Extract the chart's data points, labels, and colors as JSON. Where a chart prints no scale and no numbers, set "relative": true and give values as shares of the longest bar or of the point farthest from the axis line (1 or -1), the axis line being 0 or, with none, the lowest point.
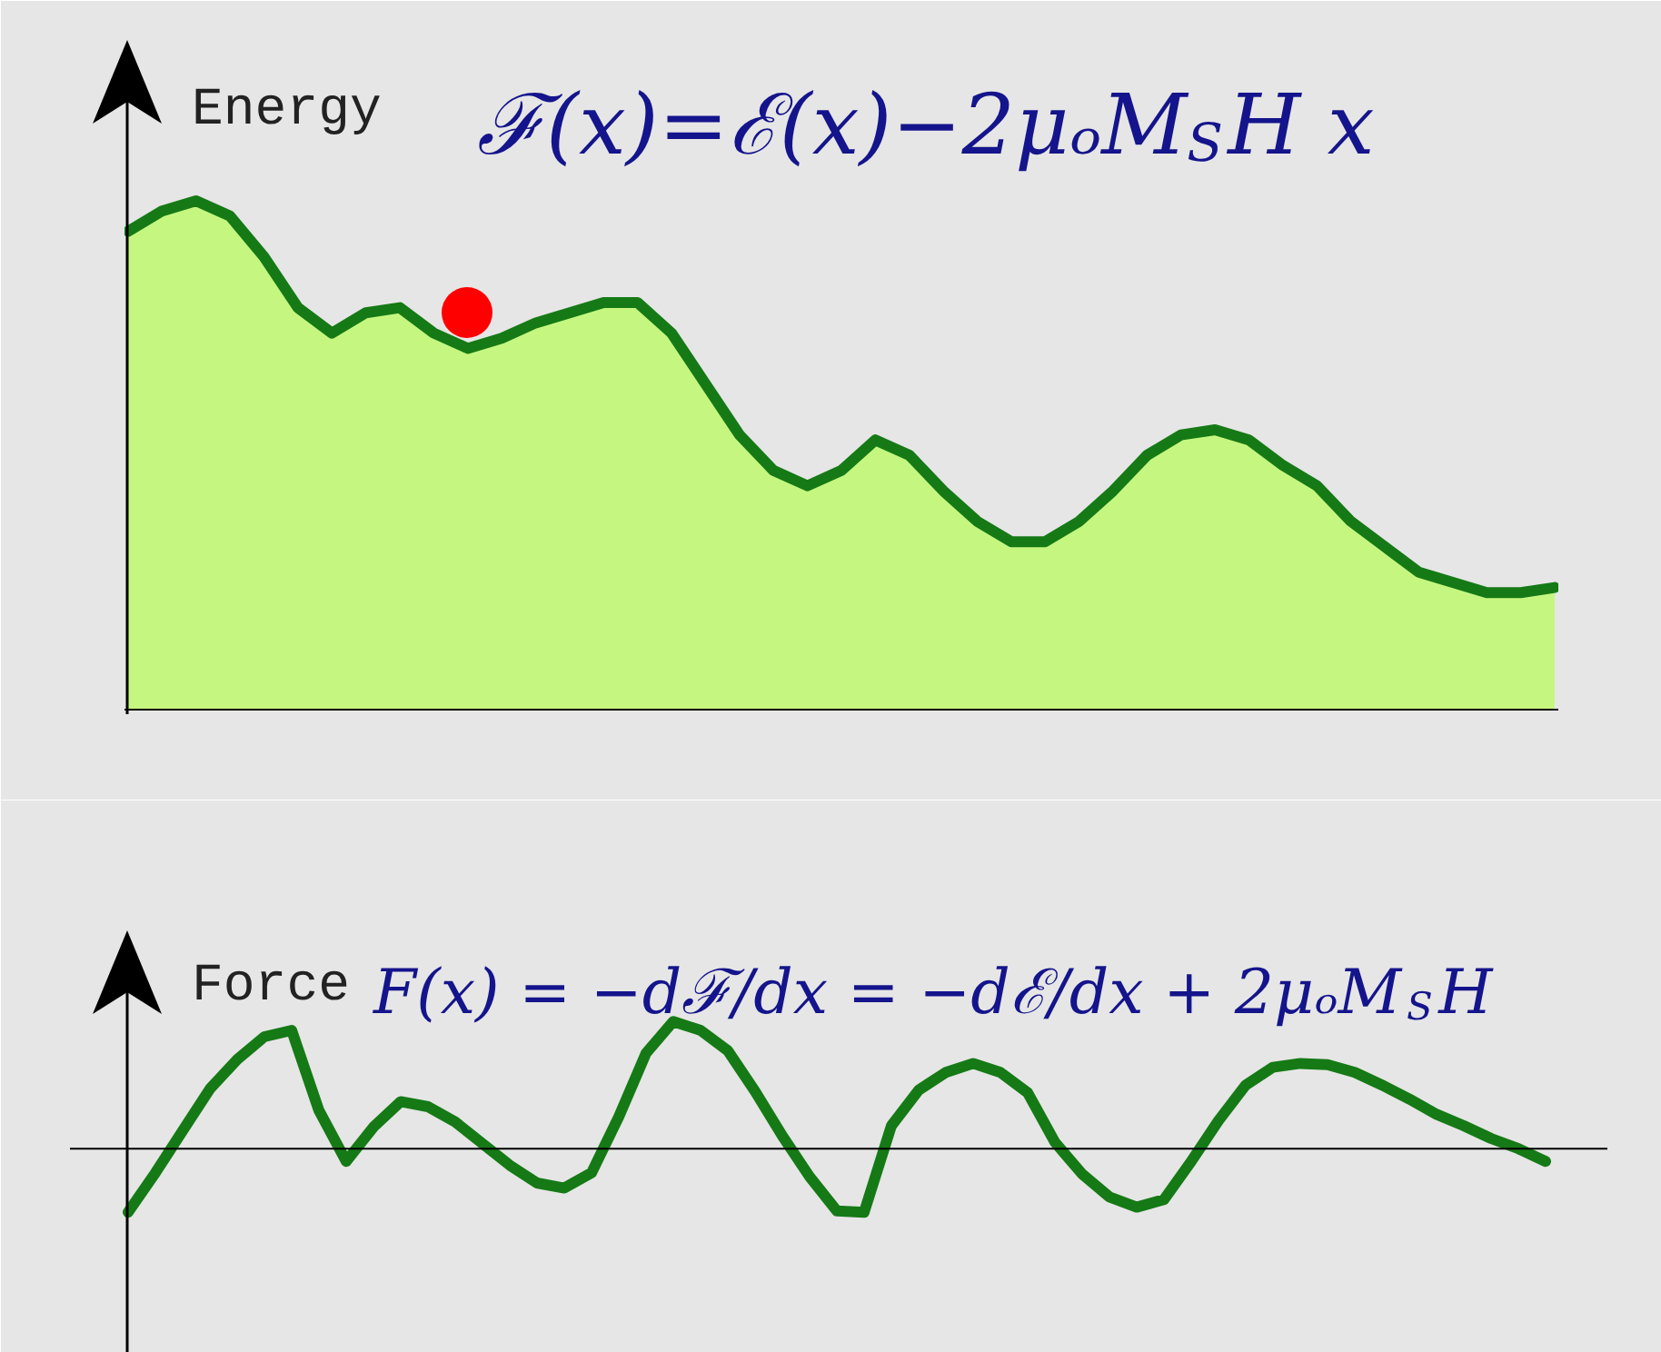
{
  "chart_data": [
    {
      "type": "area",
      "title": "ℱ(x)=ℰ(x)−2μₒM$_{S}$H x",
      "ylabel": "Energy",
      "relative": true,
      "categories": [
        null,
        null,
        null,
        null,
        null,
        null,
        null,
        null,
        null,
        null,
        null,
        null,
        null,
        null,
        null,
        null,
        null,
        null,
        null,
        null,
        null,
        null,
        null,
        null,
        null,
        null,
        null,
        null,
        null,
        null,
        null,
        null,
        null,
        null,
        null,
        null,
        null,
        null,
        null,
        null,
        null,
        null,
        null
      ],
      "series": [
        {
          "color": "#c5f780",
          "values": [
            0.94,
            0.98,
            1,
            0.97,
            0.89,
            0.79,
            0.74,
            0.78,
            0.79,
            0.74,
            0.71,
            0.73,
            0.76,
            0.78,
            0.8,
            0.8,
            0.74,
            0.64,
            0.54,
            0.47,
            0.44,
            0.47,
            0.53,
            0.5,
            0.43,
            0.37,
            0.33,
            0.33,
            0.37,
            0.43,
            0.5,
            0.54,
            0.55,
            0.53,
            0.48,
            0.44,
            0.37,
            0.32,
            0.27,
            0.25,
            0.23,
            0.23,
            0.24
          ]
        }
      ]
    },
    {
      "type": "line",
      "title": "F(x) = −dℱ/dx = −dℰ/dx + 2μₒM$_{S}$H",
      "ylabel": "Force",
      "relative": true,
      "categories": [
        null,
        null,
        null,
        null,
        null,
        null,
        null,
        null,
        null,
        null,
        null,
        null,
        null,
        null,
        null,
        null,
        null,
        null,
        null,
        null,
        null,
        null,
        null,
        null,
        null,
        null,
        null,
        null,
        null,
        null,
        null,
        null,
        null,
        null,
        null,
        null,
        null,
        null,
        null,
        null,
        null,
        null,
        null,
        null,
        null,
        null,
        null,
        null,
        null,
        null,
        null,
        null,
        null
      ],
      "series": [
        {
          "color": "#157a15",
          "values": [
            -0.5,
            -0.19,
            0.14,
            0.47,
            0.7,
            0.88,
            0.93,
            0.3,
            -0.1,
            0.17,
            0.37,
            0.33,
            0.21,
            0.04,
            -0.13,
            -0.27,
            -0.31,
            -0.19,
            0.25,
            0.75,
            1,
            0.93,
            0.77,
            0.45,
            0.1,
            -0.22,
            -0.49,
            -0.5,
            0.18,
            0.46,
            0.6,
            0.67,
            0.6,
            0.44,
            0.05,
            -0.2,
            -0.38,
            -0.46,
            -0.4,
            -0.1,
            0.22,
            0.5,
            0.64,
            0.67,
            0.66,
            0.6,
            0.5,
            0.39,
            0.27,
            0.18,
            0.08,
            0,
            -0.1
          ]
        }
      ]
    }
  ]
}
